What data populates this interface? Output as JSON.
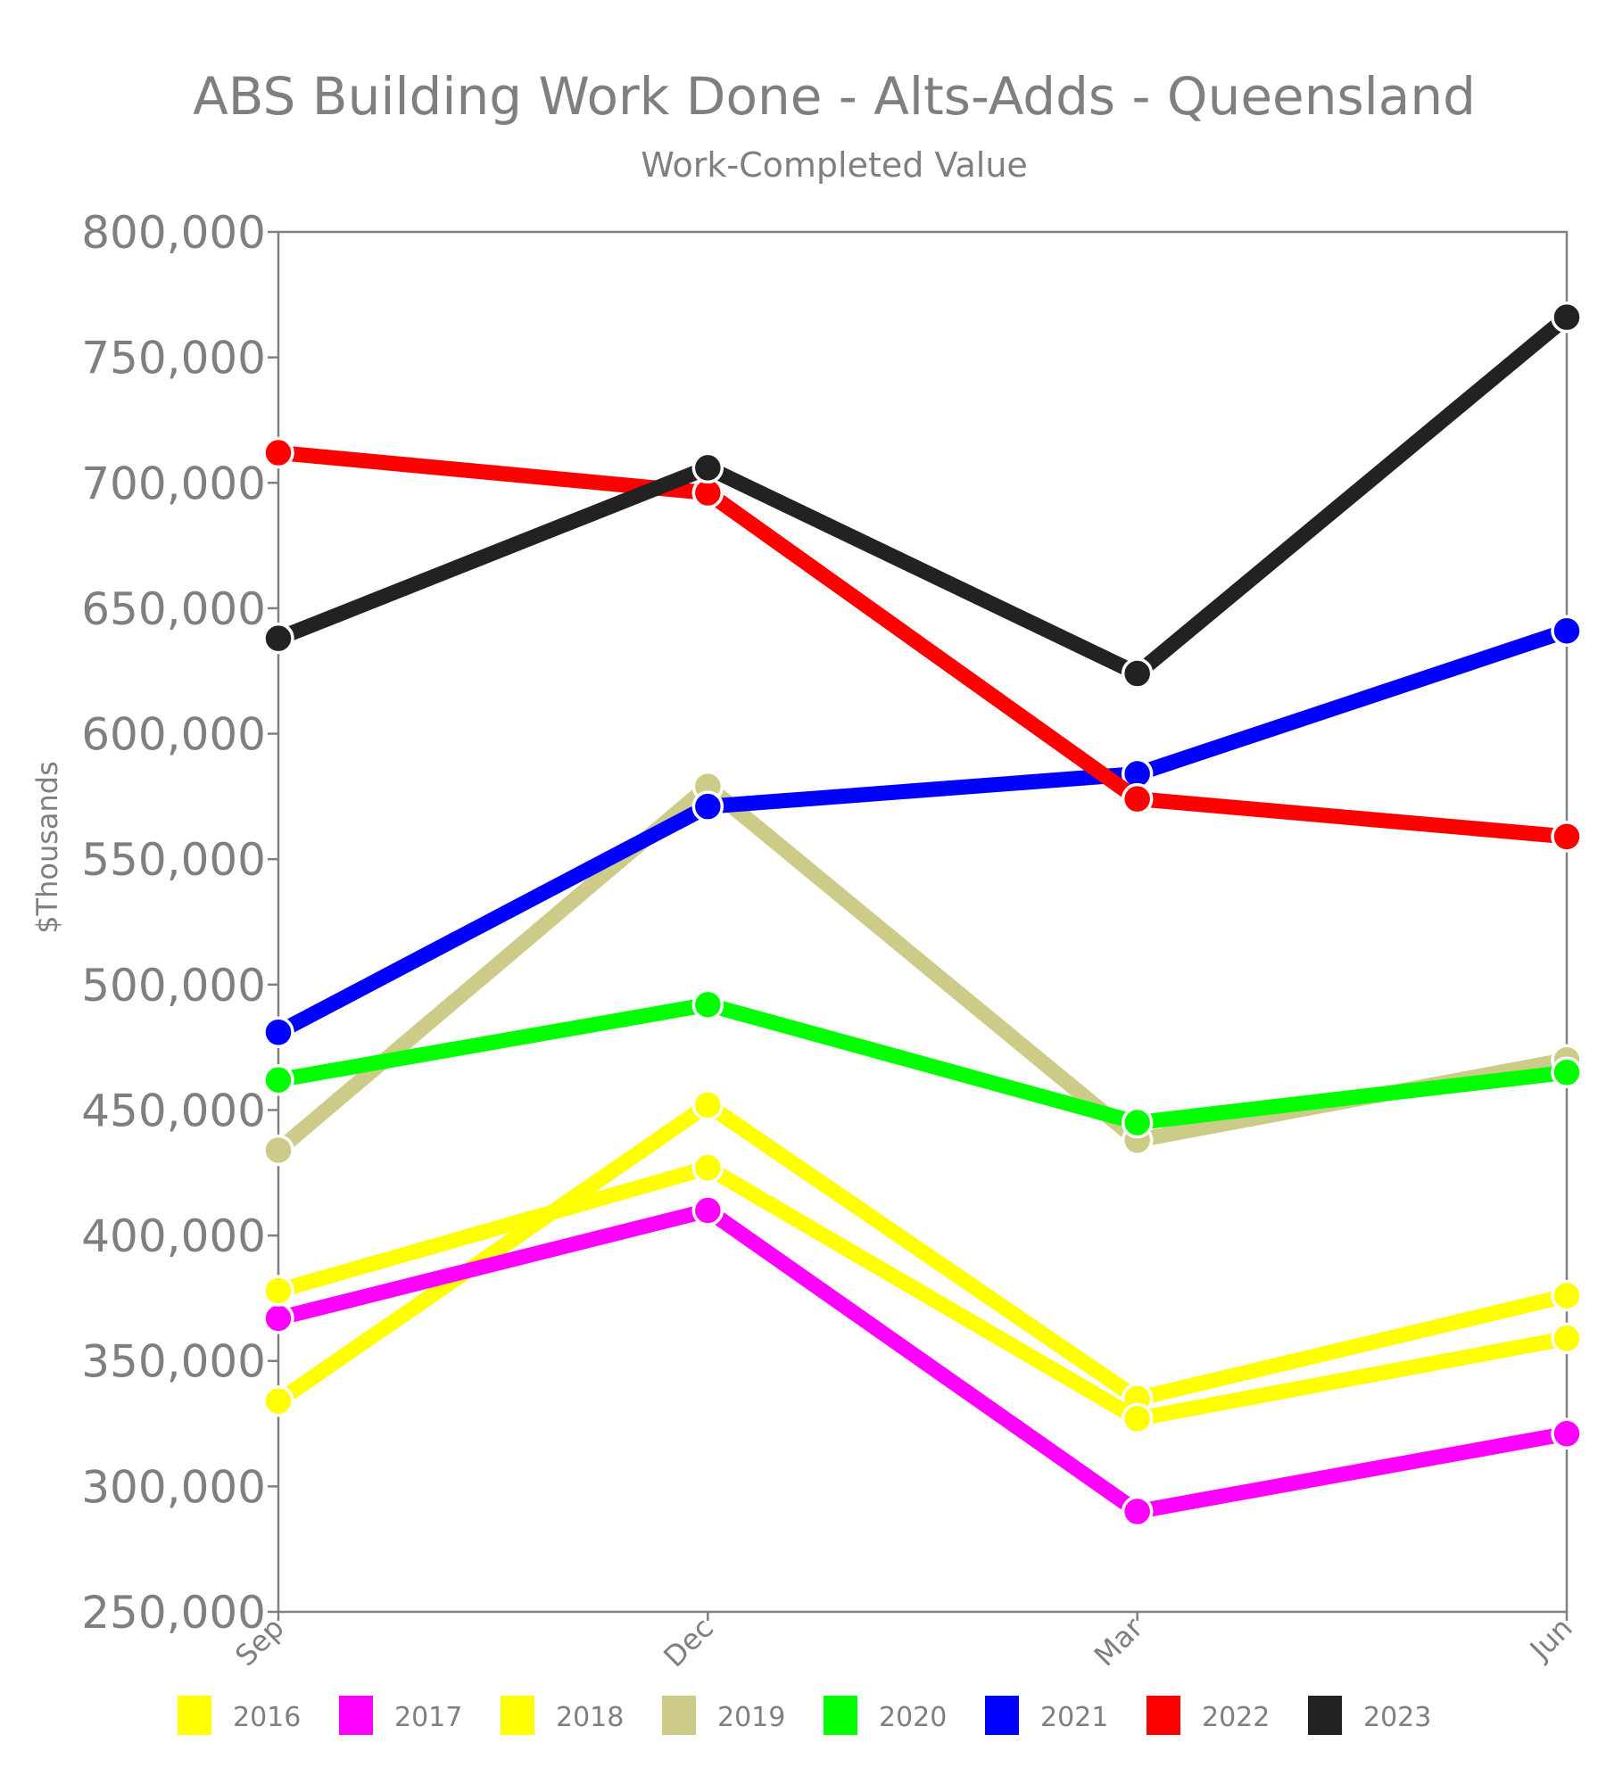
{
  "chart_data": {
    "type": "line",
    "title": "ABS Building Work Done - Alts-Adds - Queensland",
    "subtitle": "Work-Completed Value",
    "xlabel": "",
    "ylabel": "$Thousands",
    "categories": [
      "Sep",
      "Dec",
      "Mar",
      "Jun"
    ],
    "ylim": [
      250000,
      800000
    ],
    "yticks": [
      250000,
      300000,
      350000,
      400000,
      450000,
      500000,
      550000,
      600000,
      650000,
      700000,
      750000,
      800000
    ],
    "ytick_labels": [
      "250,000",
      "300,000",
      "350,000",
      "400,000",
      "450,000",
      "500,000",
      "550,000",
      "600,000",
      "650,000",
      "700,000",
      "750,000",
      "800,000"
    ],
    "grid": false,
    "legend_position": "bottom",
    "series": [
      {
        "name": "2016",
        "color": "#ffff00",
        "values": [
          334000,
          452000,
          335000,
          376000
        ]
      },
      {
        "name": "2017",
        "color": "#ff00ff",
        "values": [
          367000,
          410000,
          290000,
          321000
        ]
      },
      {
        "name": "2018",
        "color": "#ffff00",
        "values": [
          378000,
          427000,
          327000,
          359000
        ]
      },
      {
        "name": "2019",
        "color": "#cccc88",
        "values": [
          434000,
          579000,
          438000,
          470000
        ]
      },
      {
        "name": "2020",
        "color": "#00ff00",
        "values": [
          462000,
          492000,
          445000,
          465000
        ]
      },
      {
        "name": "2021",
        "color": "#0000ff",
        "values": [
          481000,
          571000,
          584000,
          641000
        ]
      },
      {
        "name": "2022",
        "color": "#ff0000",
        "values": [
          712000,
          696000,
          574000,
          559000
        ]
      },
      {
        "name": "2023",
        "color": "#222222",
        "values": [
          638000,
          706000,
          624000,
          766000
        ]
      }
    ]
  }
}
